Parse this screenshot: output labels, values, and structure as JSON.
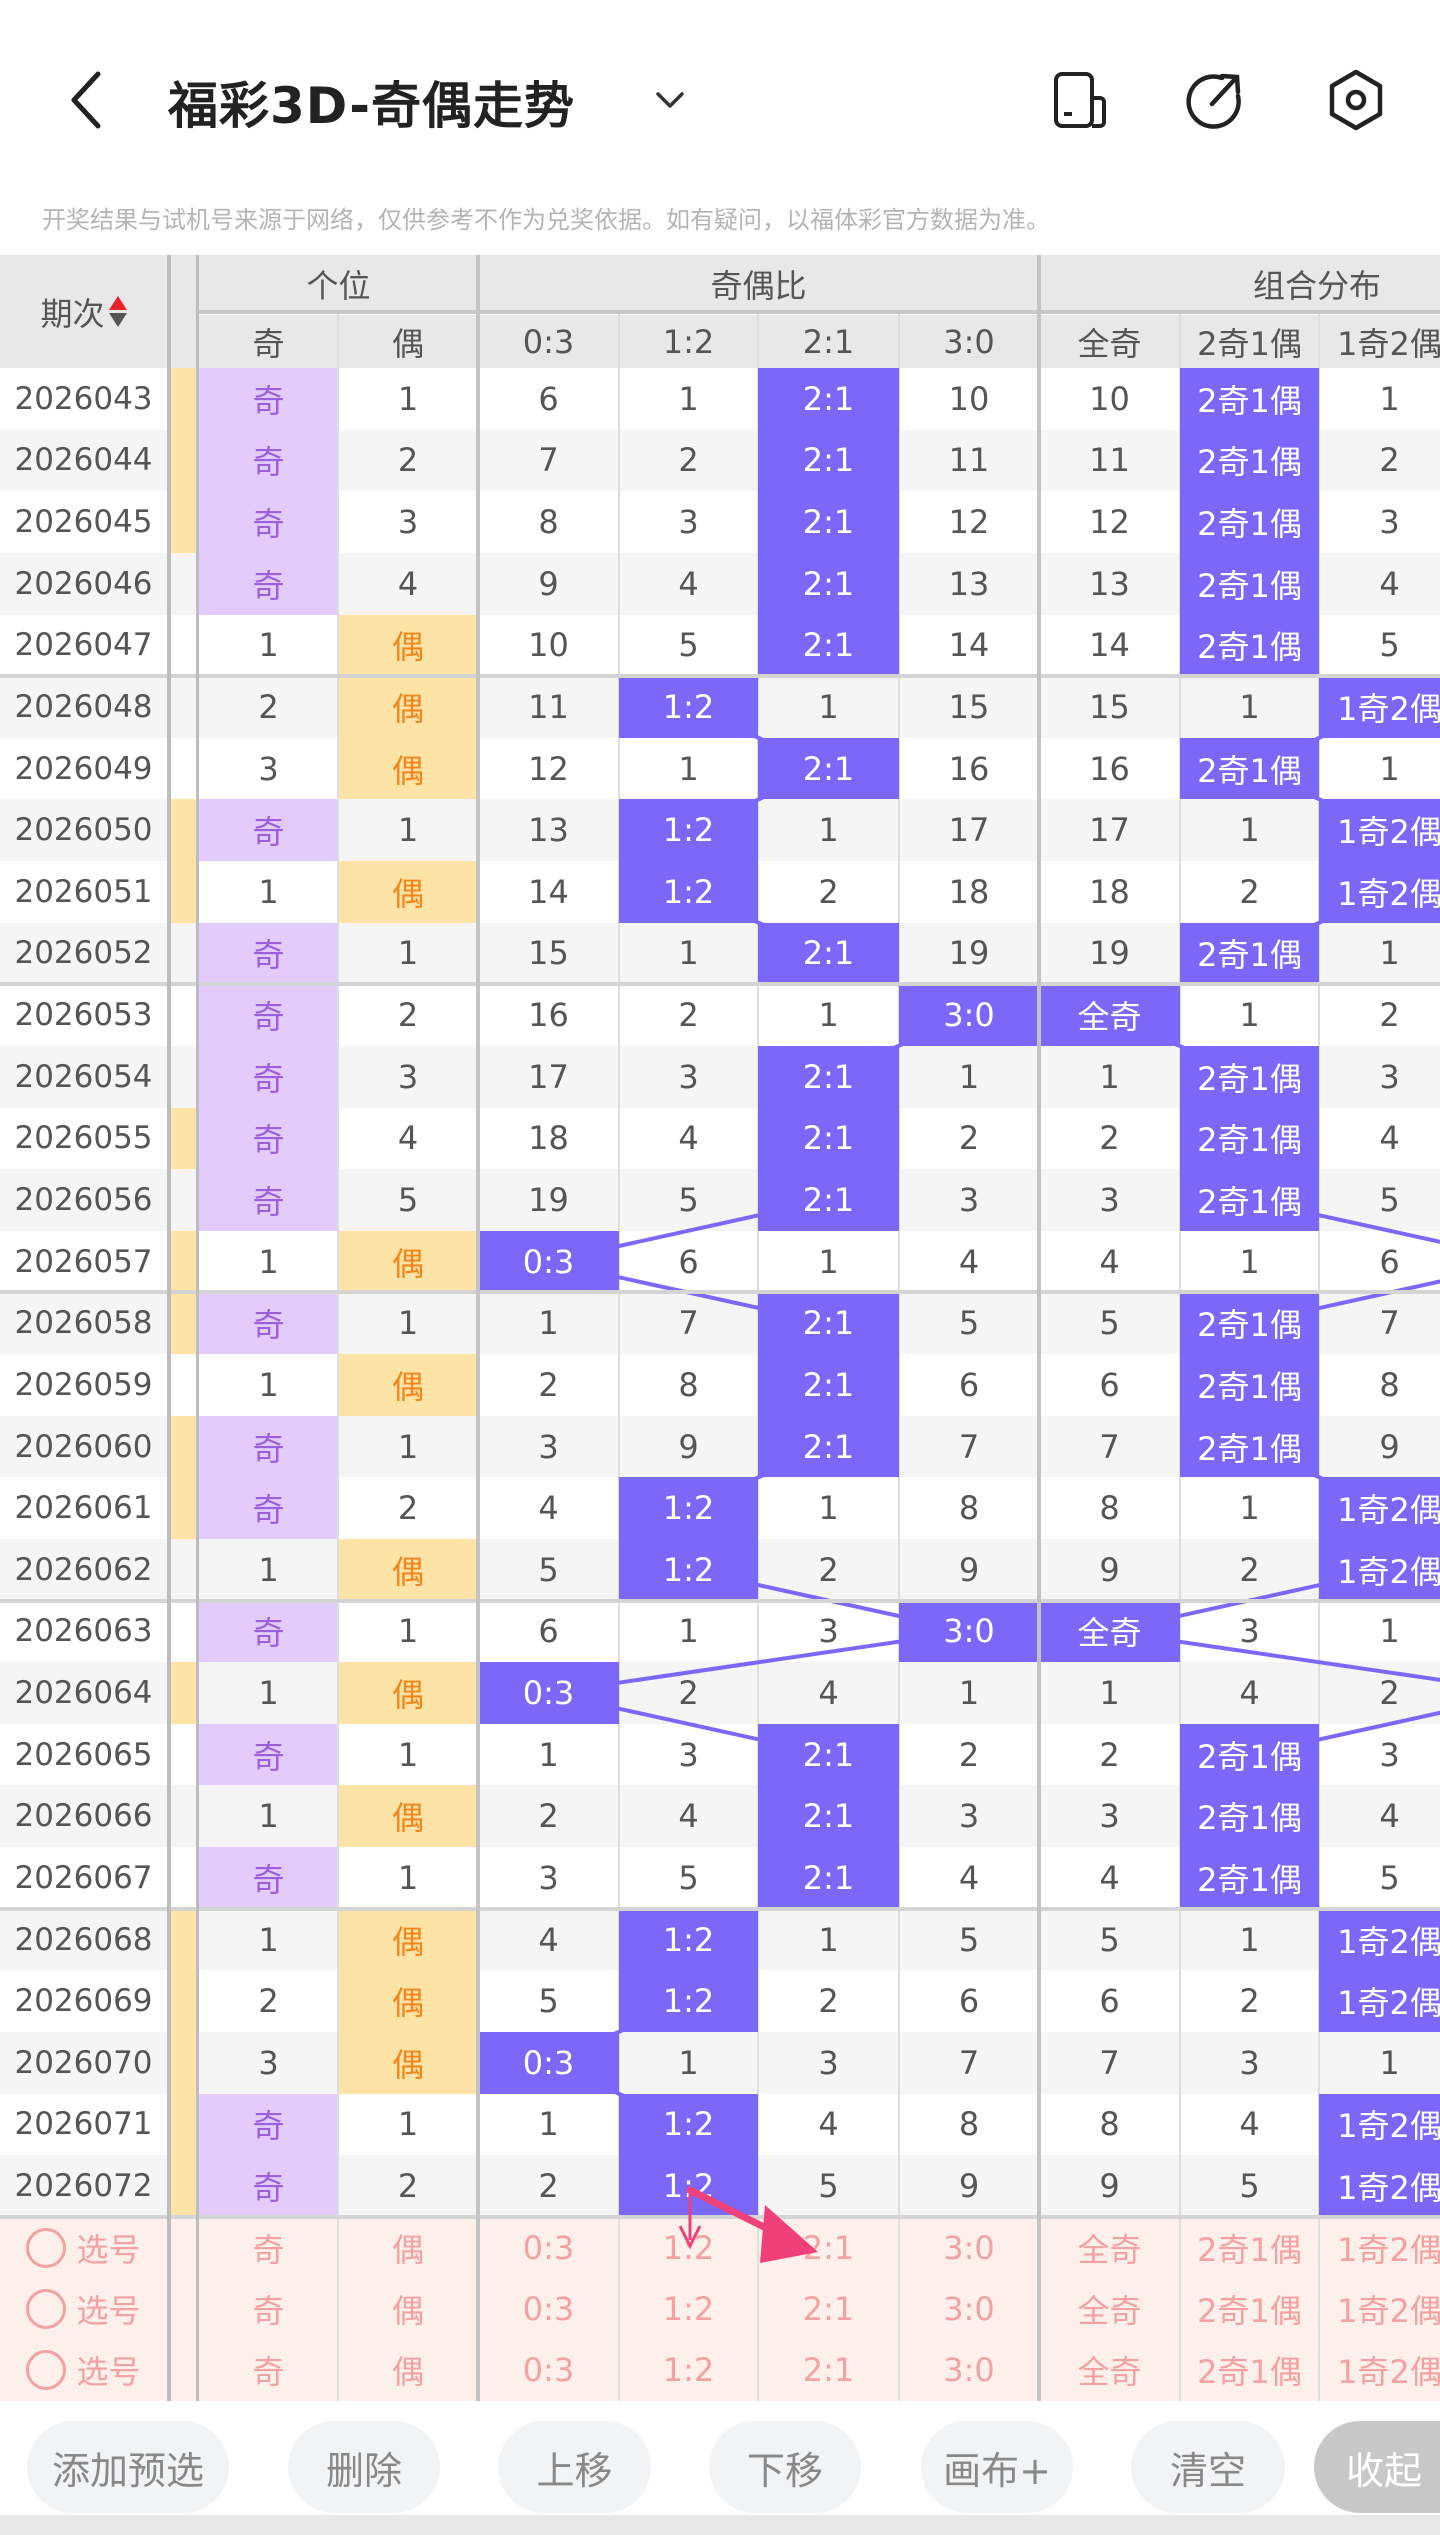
{
  "header": {
    "title": "福彩3D-奇偶走势",
    "back_icon": "chevron-left-icon",
    "dropdown_icon": "chevron-down-icon",
    "icons": [
      "phone-layout-icon",
      "share-icon",
      "settings-hexagon-icon"
    ]
  },
  "disclaimer": "开奖结果与试机号来源于网络，仅供参考不作为兑奖依据。如有疑问，以福体彩官方数据为准。",
  "table": {
    "period_header": "期次",
    "groups": [
      "个位",
      "奇偶比",
      "组合分布"
    ],
    "subheaders": [
      "奇",
      "偶",
      "0:3",
      "1:2",
      "2:1",
      "3:0",
      "全奇",
      "2奇1偶",
      "1奇2偶"
    ],
    "colors": {
      "hit": "#7b68f8",
      "odd": "#e3ccfc",
      "even": "#fee3a7",
      "strip": "#fee3a7",
      "pick_bg": "#fdefe9"
    },
    "rows": [
      {
        "period": "2026043",
        "strip": true,
        "cells": [
          "奇",
          "1",
          "6",
          "1",
          "2:1",
          "10",
          "10",
          "2奇1偶",
          "1"
        ]
      },
      {
        "period": "2026044",
        "strip": true,
        "cells": [
          "奇",
          "2",
          "7",
          "2",
          "2:1",
          "11",
          "11",
          "2奇1偶",
          "2"
        ]
      },
      {
        "period": "2026045",
        "strip": true,
        "cells": [
          "奇",
          "3",
          "8",
          "3",
          "2:1",
          "12",
          "12",
          "2奇1偶",
          "3"
        ]
      },
      {
        "period": "2026046",
        "strip": false,
        "cells": [
          "奇",
          "4",
          "9",
          "4",
          "2:1",
          "13",
          "13",
          "2奇1偶",
          "4"
        ]
      },
      {
        "period": "2026047",
        "strip": false,
        "cells": [
          "1",
          "偶",
          "10",
          "5",
          "2:1",
          "14",
          "14",
          "2奇1偶",
          "5"
        ]
      },
      {
        "period": "2026048",
        "strip": false,
        "cells": [
          "2",
          "偶",
          "11",
          "1:2",
          "1",
          "15",
          "15",
          "1",
          "1奇2偶"
        ]
      },
      {
        "period": "2026049",
        "strip": false,
        "cells": [
          "3",
          "偶",
          "12",
          "1",
          "2:1",
          "16",
          "16",
          "2奇1偶",
          "1"
        ]
      },
      {
        "period": "2026050",
        "strip": true,
        "cells": [
          "奇",
          "1",
          "13",
          "1:2",
          "1",
          "17",
          "17",
          "1",
          "1奇2偶"
        ]
      },
      {
        "period": "2026051",
        "strip": true,
        "cells": [
          "1",
          "偶",
          "14",
          "1:2",
          "2",
          "18",
          "18",
          "2",
          "1奇2偶"
        ]
      },
      {
        "period": "2026052",
        "strip": false,
        "cells": [
          "奇",
          "1",
          "15",
          "1",
          "2:1",
          "19",
          "19",
          "2奇1偶",
          "1"
        ]
      },
      {
        "period": "2026053",
        "strip": false,
        "cells": [
          "奇",
          "2",
          "16",
          "2",
          "1",
          "3:0",
          "全奇",
          "1",
          "2"
        ]
      },
      {
        "period": "2026054",
        "strip": false,
        "cells": [
          "奇",
          "3",
          "17",
          "3",
          "2:1",
          "1",
          "1",
          "2奇1偶",
          "3"
        ]
      },
      {
        "period": "2026055",
        "strip": true,
        "cells": [
          "奇",
          "4",
          "18",
          "4",
          "2:1",
          "2",
          "2",
          "2奇1偶",
          "4"
        ]
      },
      {
        "period": "2026056",
        "strip": false,
        "cells": [
          "奇",
          "5",
          "19",
          "5",
          "2:1",
          "3",
          "3",
          "2奇1偶",
          "5"
        ]
      },
      {
        "period": "2026057",
        "strip": true,
        "cells": [
          "1",
          "偶",
          "0:3",
          "6",
          "1",
          "4",
          "4",
          "1",
          "6"
        ]
      },
      {
        "period": "2026058",
        "strip": true,
        "cells": [
          "奇",
          "1",
          "1",
          "7",
          "2:1",
          "5",
          "5",
          "2奇1偶",
          "7"
        ]
      },
      {
        "period": "2026059",
        "strip": false,
        "cells": [
          "1",
          "偶",
          "2",
          "8",
          "2:1",
          "6",
          "6",
          "2奇1偶",
          "8"
        ]
      },
      {
        "period": "2026060",
        "strip": true,
        "cells": [
          "奇",
          "1",
          "3",
          "9",
          "2:1",
          "7",
          "7",
          "2奇1偶",
          "9"
        ]
      },
      {
        "period": "2026061",
        "strip": true,
        "cells": [
          "奇",
          "2",
          "4",
          "1:2",
          "1",
          "8",
          "8",
          "1",
          "1奇2偶"
        ]
      },
      {
        "period": "2026062",
        "strip": false,
        "cells": [
          "1",
          "偶",
          "5",
          "1:2",
          "2",
          "9",
          "9",
          "2",
          "1奇2偶"
        ]
      },
      {
        "period": "2026063",
        "strip": false,
        "cells": [
          "奇",
          "1",
          "6",
          "1",
          "3",
          "3:0",
          "全奇",
          "3",
          "1"
        ]
      },
      {
        "period": "2026064",
        "strip": true,
        "cells": [
          "1",
          "偶",
          "0:3",
          "2",
          "4",
          "1",
          "1",
          "4",
          "2"
        ]
      },
      {
        "period": "2026065",
        "strip": false,
        "cells": [
          "奇",
          "1",
          "1",
          "3",
          "2:1",
          "2",
          "2",
          "2奇1偶",
          "3"
        ]
      },
      {
        "period": "2026066",
        "strip": false,
        "cells": [
          "1",
          "偶",
          "2",
          "4",
          "2:1",
          "3",
          "3",
          "2奇1偶",
          "4"
        ]
      },
      {
        "period": "2026067",
        "strip": false,
        "cells": [
          "奇",
          "1",
          "3",
          "5",
          "2:1",
          "4",
          "4",
          "2奇1偶",
          "5"
        ]
      },
      {
        "period": "2026068",
        "strip": true,
        "cells": [
          "1",
          "偶",
          "4",
          "1:2",
          "1",
          "5",
          "5",
          "1",
          "1奇2偶"
        ]
      },
      {
        "period": "2026069",
        "strip": true,
        "cells": [
          "2",
          "偶",
          "5",
          "1:2",
          "2",
          "6",
          "6",
          "2",
          "1奇2偶"
        ]
      },
      {
        "period": "2026070",
        "strip": true,
        "cells": [
          "3",
          "偶",
          "0:3",
          "1",
          "3",
          "7",
          "7",
          "3",
          "1"
        ]
      },
      {
        "period": "2026071",
        "strip": true,
        "cells": [
          "奇",
          "1",
          "1",
          "1:2",
          "4",
          "8",
          "8",
          "4",
          "1奇2偶"
        ]
      },
      {
        "period": "2026072",
        "strip": true,
        "cells": [
          "奇",
          "2",
          "2",
          "1:2",
          "5",
          "9",
          "9",
          "5",
          "1奇2偶"
        ]
      }
    ],
    "pick_rows": [
      {
        "label": "选号",
        "cells": [
          "奇",
          "偶",
          "0:3",
          "1:2",
          "2:1",
          "3:0",
          "全奇",
          "2奇1偶",
          "1奇2偶"
        ]
      },
      {
        "label": "选号",
        "cells": [
          "奇",
          "偶",
          "0:3",
          "1:2",
          "2:1",
          "3:0",
          "全奇",
          "2奇1偶",
          "1奇2偶"
        ]
      },
      {
        "label": "选号",
        "cells": [
          "奇",
          "偶",
          "0:3",
          "1:2",
          "2:1",
          "3:0",
          "全奇",
          "2奇1偶",
          "1奇2偶"
        ]
      }
    ]
  },
  "buttons": [
    "添加预选",
    "删除",
    "上移",
    "下移",
    "画布+",
    "清空",
    "收起"
  ],
  "annotation_color": "#f0407a"
}
